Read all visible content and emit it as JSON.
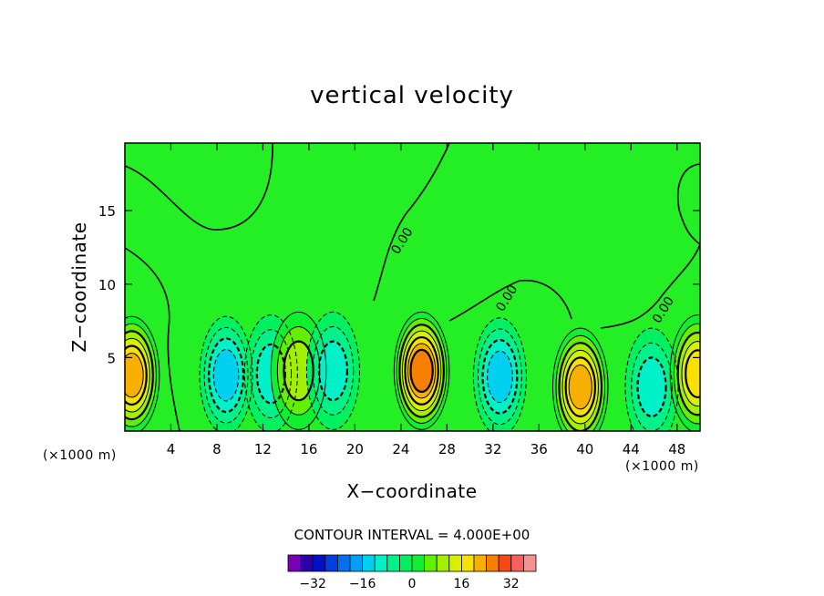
{
  "chart_data": {
    "type": "heatmap",
    "title": "vertical velocity",
    "xlabel": "X−coordinate",
    "ylabel": "Z−coordinate",
    "x_unit_left": "(×1000 m)",
    "x_unit_right": "(×1000 m)",
    "xlim": [
      0,
      50
    ],
    "ylim": [
      0,
      19.6
    ],
    "x_ticks": [
      4,
      8,
      12,
      16,
      20,
      24,
      28,
      32,
      36,
      40,
      44,
      48
    ],
    "x_tick_labels": [
      "4",
      "8",
      "12",
      "16",
      "20",
      "24",
      "28",
      "32",
      "36",
      "40",
      "44",
      "48"
    ],
    "y_ticks": [
      5,
      10,
      15
    ],
    "y_tick_labels": [
      "5",
      "10",
      "15"
    ],
    "contour_interval_text": "CONTOUR INTERVAL = 4.000E+00",
    "contour_interval": 4,
    "zero_contour_labels": [
      {
        "text": "0.00",
        "x": 24.4,
        "y": 12.8
      },
      {
        "text": "0.00",
        "x": 33.5,
        "y": 8.9
      },
      {
        "text": "0.00",
        "x": 47.1,
        "y": 8.1
      }
    ],
    "colorbar": {
      "levels": [
        -40,
        -36,
        -32,
        -28,
        -24,
        -20,
        -16,
        -12,
        -8,
        -4,
        0,
        4,
        8,
        12,
        16,
        20,
        24,
        28,
        32,
        36,
        40
      ],
      "colors": [
        "#7a00b8",
        "#2a00a8",
        "#0010c8",
        "#0040e0",
        "#0070f0",
        "#00a0f8",
        "#00d0f0",
        "#00f0c8",
        "#00f08a",
        "#00f060",
        "#10f030",
        "#60f000",
        "#a0f000",
        "#d8f000",
        "#f8e000",
        "#f8b000",
        "#f88000",
        "#f84818",
        "#f86060",
        "#f89090"
      ],
      "tick_labels": [
        "−32",
        "−16",
        "0",
        "16",
        "32"
      ],
      "tick_values": [
        -32,
        -16,
        0,
        16,
        32
      ]
    },
    "background_color": "#24ee24",
    "cells": [
      {
        "kind": "up",
        "x": 0.6,
        "z": 3.8,
        "peak": 20
      },
      {
        "kind": "down",
        "x": 8.8,
        "z": 3.8,
        "peak": -12
      },
      {
        "kind": "down",
        "x": 12.7,
        "z": 3.9,
        "peak": -8
      },
      {
        "kind": "up",
        "x": 15.1,
        "z": 4.1,
        "peak": 8
      },
      {
        "kind": "down",
        "x": 18.1,
        "z": 4.1,
        "peak": -8
      },
      {
        "kind": "up",
        "x": 25.8,
        "z": 4.1,
        "peak": 24
      },
      {
        "kind": "down",
        "x": 32.6,
        "z": 3.7,
        "peak": -12
      },
      {
        "kind": "up",
        "x": 39.6,
        "z": 3.0,
        "peak": 20
      },
      {
        "kind": "down",
        "x": 45.8,
        "z": 3.0,
        "peak": -8
      },
      {
        "kind": "up",
        "x": 49.8,
        "z": 3.9,
        "peak": 16
      }
    ]
  }
}
